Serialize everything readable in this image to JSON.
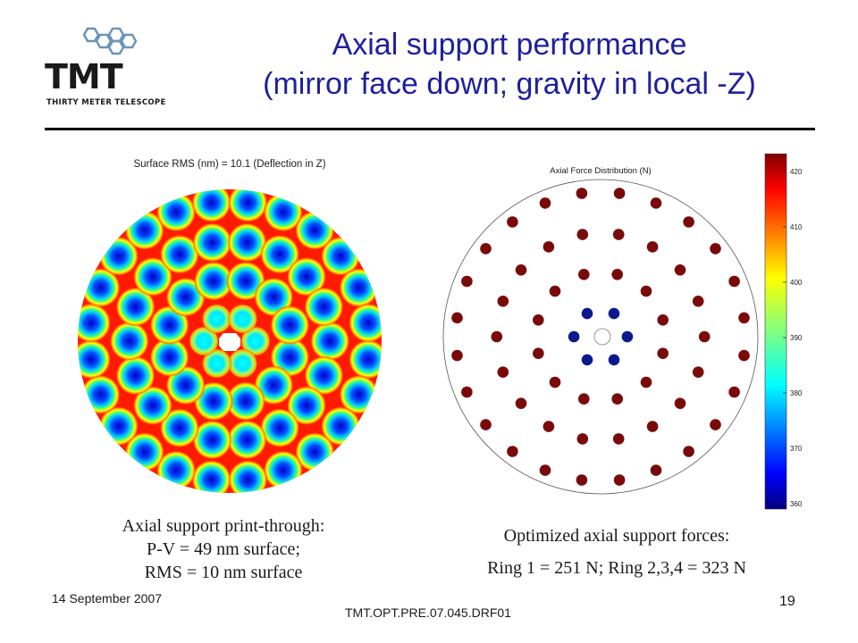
{
  "logo": {
    "name": "TMT",
    "subtitle": "THIRTY METER TELESCOPE"
  },
  "title": {
    "line1": "Axial support performance",
    "line2": "(mirror face down; gravity in local -Z)"
  },
  "left_plot": {
    "title": "Surface RMS (nm) =   10.1 (Deflection in Z)"
  },
  "right_plot": {
    "title": "Axial Force Distribution (N)"
  },
  "colorbar": {
    "ticks": [
      "420",
      "410",
      "400",
      "390",
      "380",
      "370",
      "360"
    ]
  },
  "left_caption": {
    "line1": "Axial support print-through:",
    "line2": "P-V = 49 nm surface;",
    "line3": "RMS = 10 nm surface"
  },
  "right_caption": {
    "line1": "Optimized axial support forces:",
    "line2": "Ring 1 = 251 N;  Ring 2,3,4 = 323 N"
  },
  "footer": {
    "date": "14 September 2007",
    "doc_id": "TMT.OPT.PRE.07.045.DRF01",
    "page": "19"
  },
  "colors": {
    "title": "#1f1f9e",
    "force_high": "#7a0a0a",
    "force_low": "#0a1a8c"
  }
}
